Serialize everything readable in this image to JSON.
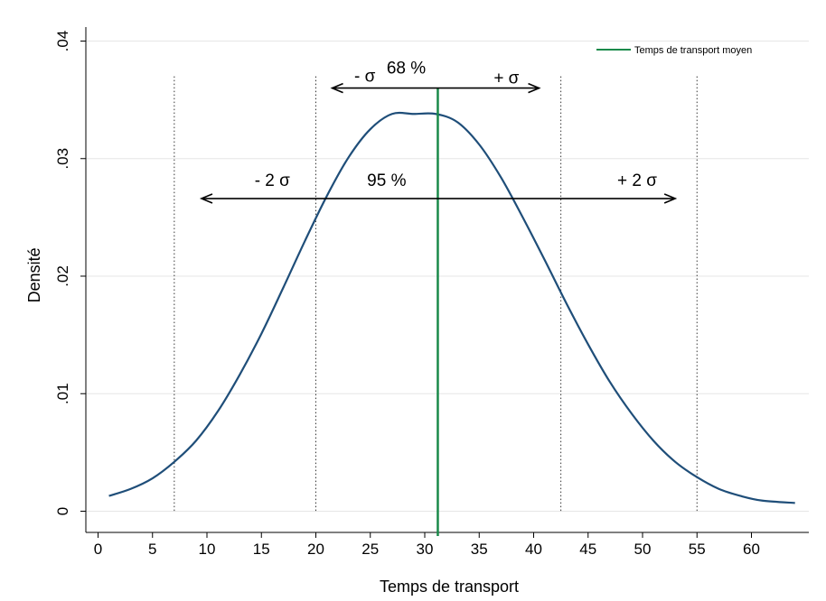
{
  "chart_data": {
    "type": "line",
    "title": "",
    "xlabel": "Temps de transport",
    "ylabel": "Densité",
    "xlim": [
      0,
      65
    ],
    "ylim": [
      0,
      0.04
    ],
    "x_ticks": [
      0,
      5,
      10,
      15,
      20,
      25,
      30,
      35,
      40,
      45,
      50,
      55,
      60
    ],
    "x_tick_labels": [
      "0",
      "5",
      "10",
      "15",
      "20",
      "25",
      "30",
      "35",
      "40",
      "45",
      "50",
      "55",
      "60"
    ],
    "y_ticks": [
      0,
      0.01,
      0.02,
      0.03,
      0.04
    ],
    "y_tick_labels": [
      "0",
      ".01",
      ".02",
      ".03",
      ".04"
    ],
    "grid": true,
    "legend_position": "top-right",
    "colors": {
      "curve": "#1f4e79",
      "mean": "#1a8a4a",
      "grid": "#e6e6e6"
    },
    "series": [
      {
        "name": "",
        "x": [
          1,
          3,
          5,
          7,
          9,
          11,
          13,
          15,
          17,
          19,
          21,
          23,
          25,
          27,
          29,
          31,
          33,
          35,
          37,
          39,
          41,
          43,
          45,
          47,
          49,
          51,
          53,
          55,
          57,
          59,
          61,
          64
        ],
        "y": [
          0.0013,
          0.0019,
          0.0028,
          0.0042,
          0.006,
          0.0085,
          0.0116,
          0.0151,
          0.019,
          0.023,
          0.0268,
          0.0301,
          0.0325,
          0.0338,
          0.0338,
          0.0338,
          0.0331,
          0.0312,
          0.0284,
          0.025,
          0.0214,
          0.0177,
          0.0142,
          0.011,
          0.0083,
          0.006,
          0.0042,
          0.0029,
          0.0019,
          0.0013,
          0.0009,
          0.0007
        ]
      }
    ],
    "mean_line": {
      "label": "Temps de transport moyen",
      "x": 31.2
    },
    "sigma_lines": [
      7,
      20,
      42.5,
      55
    ],
    "annotations": {
      "sigma1": {
        "pct": "68 %",
        "left": "- σ",
        "right": "+ σ",
        "x_from": 21.5,
        "x_to": 40.5,
        "y": 0.036
      },
      "sigma2": {
        "pct": "95 %",
        "left": "- 2 σ",
        "right": "+ 2 σ",
        "x_from": 9.5,
        "x_to": 53,
        "y": 0.0266
      }
    }
  }
}
